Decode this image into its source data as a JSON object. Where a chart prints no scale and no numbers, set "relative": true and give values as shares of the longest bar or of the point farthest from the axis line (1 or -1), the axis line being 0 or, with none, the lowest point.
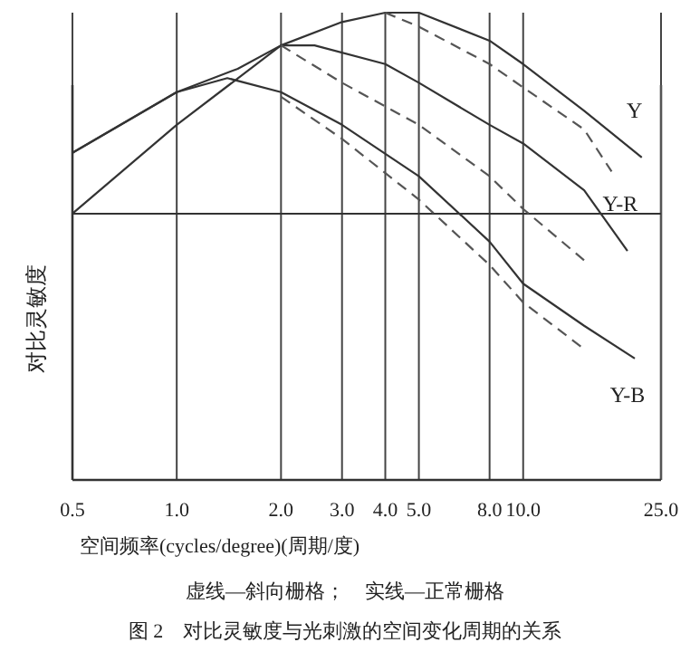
{
  "chart_data": {
    "type": "line",
    "relative": true,
    "log": "x",
    "grid": "x",
    "xlabel": "空间频率(cycles/degree)(周期/度)",
    "ylabel": "对比灵敏度",
    "xlim": [
      0.5,
      25
    ],
    "xticks": [
      {
        "value": 0.5,
        "label": "0.5"
      },
      {
        "value": 1,
        "label": "1.0"
      },
      {
        "value": 2,
        "label": "2.0"
      },
      {
        "value": 3,
        "label": "3.0"
      },
      {
        "value": 4,
        "label": "4.0"
      },
      {
        "value": 5,
        "label": "5.0"
      },
      {
        "value": 8,
        "label": "8.0"
      },
      {
        "value": 10,
        "label": "10.0"
      },
      {
        "value": 25,
        "label": "25.0"
      }
    ],
    "ref_lines": [
      {
        "axis": "y",
        "value": 0.57,
        "color": "#333333"
      }
    ],
    "series": [
      {
        "name": "Y",
        "color": "#333333",
        "line_style": "solid",
        "x": [
          0.5,
          1,
          1.5,
          2,
          3,
          4,
          5,
          8,
          10,
          15,
          22
        ],
        "values": [
          0.7,
          0.83,
          0.88,
          0.93,
          0.98,
          1.0,
          1.0,
          0.94,
          0.89,
          0.79,
          0.69
        ]
      },
      {
        "color": "#555555",
        "line_style": "dashed",
        "x": [
          4,
          5,
          8,
          10,
          15,
          18
        ],
        "values": [
          1.0,
          0.97,
          0.89,
          0.84,
          0.75,
          0.66
        ]
      },
      {
        "name": "Y-R",
        "color": "#333333",
        "line_style": "solid",
        "x": [
          0.5,
          1,
          2,
          2.5,
          4,
          5,
          8,
          10,
          15,
          20
        ],
        "values": [
          0.57,
          0.76,
          0.93,
          0.93,
          0.89,
          0.85,
          0.76,
          0.72,
          0.62,
          0.49
        ]
      },
      {
        "color": "#555555",
        "line_style": "dashed",
        "x": [
          2,
          3,
          5,
          8,
          10,
          15
        ],
        "values": [
          0.93,
          0.85,
          0.76,
          0.65,
          0.58,
          0.47
        ]
      },
      {
        "name": "Y-B",
        "color": "#333333",
        "line_style": "solid",
        "x": [
          0.5,
          1,
          1.4,
          2,
          3,
          5,
          8,
          10,
          15,
          21
        ],
        "values": [
          0.7,
          0.83,
          0.86,
          0.83,
          0.76,
          0.65,
          0.51,
          0.42,
          0.33,
          0.26
        ]
      },
      {
        "color": "#555555",
        "line_style": "dashed",
        "x": [
          2,
          3,
          5,
          8,
          10,
          15
        ],
        "values": [
          0.82,
          0.73,
          0.6,
          0.46,
          0.38,
          0.28
        ]
      }
    ],
    "annotations": [
      "虚线—斜向栅格；　实线—正常栅格",
      "图 2　对比灵敏度与光刺激的空间变化周期的关系"
    ]
  }
}
